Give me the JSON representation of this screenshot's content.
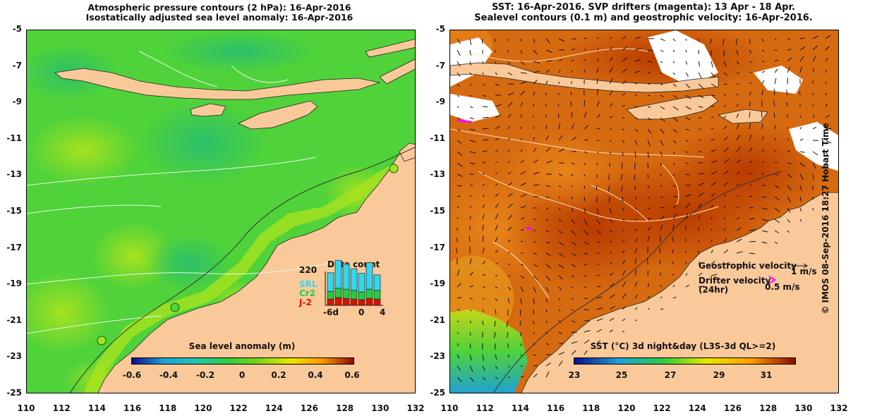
{
  "left_panel": {
    "title_line1": "Atmospheric pressure contours (2 hPa): 16-Apr-2016",
    "title_line2": "Isostatically adjusted sea level anomaly: 16-Apr-2016",
    "colorbar_title": "Sea level anomaly (m)",
    "colorbar_ticks": [
      "-0.6",
      "-0.4",
      "-0.2",
      "0",
      "0.2",
      "0.4",
      "0.6"
    ],
    "colorbar_colors": [
      "#0d0d8a",
      "#1fa0d6",
      "#23c4b0",
      "#2ecc40",
      "#7cd41a",
      "#e8e800",
      "#ff9a00",
      "#8b0c00"
    ],
    "inset": {
      "title": "Data count",
      "y_label": "220",
      "x_ticks": [
        "-6d",
        "0",
        "4"
      ],
      "legend": [
        {
          "label": "SRL",
          "color": "#33d6f0"
        },
        {
          "label": "Cr2",
          "color": "#22cc44"
        },
        {
          "label": "J-2",
          "color": "#dd1100"
        }
      ],
      "bars_SRL": [
        0.6,
        0.9,
        0.8,
        0.7,
        0.6,
        0.85,
        0.5
      ],
      "bars_Cr2": [
        0.25,
        0.3,
        0.3,
        0.28,
        0.25,
        0.3,
        0.28
      ],
      "bars_J2": [
        0.2,
        0.25,
        0.22,
        0.2,
        0.18,
        0.22,
        0.2
      ]
    }
  },
  "right_panel": {
    "title_line1": "SST: 16-Apr-2016. SVP drifters (magenta): 13 Apr - 18 Apr.",
    "title_line2": "Sealevel contours (0.1 m) and geostrophic velocity: 16-Apr-2016.",
    "colorbar_title": "SST (°C) 3d night&day (L3S-3d QL>=2)",
    "colorbar_ticks": [
      "23",
      "25",
      "27",
      "29",
      "31"
    ],
    "colorbar_colors": [
      "#0d0d8a",
      "#1fa0d6",
      "#2ecc40",
      "#e8e800",
      "#ff9a00",
      "#8b0c00"
    ],
    "legend_geo": "Geostrophic velocity",
    "legend_geo_scale": "1 m/s",
    "legend_drifter_line1": "Drifter velocity",
    "legend_drifter_line2": "(24hr)",
    "legend_drifter_scale": "0.5 m/s"
  },
  "axes": {
    "lat_ticks": [
      "-5",
      "-7",
      "-9",
      "-11",
      "-13",
      "-15",
      "-17",
      "-19",
      "-21",
      "-23",
      "-25"
    ],
    "lon_ticks": [
      "110",
      "112",
      "114",
      "116",
      "118",
      "120",
      "122",
      "124",
      "126",
      "128",
      "130",
      "132"
    ]
  },
  "credit": "© IMOS 08-Sep-2016 18:27 Hobart Time",
  "colors": {
    "land": "#f9c99a",
    "ocean_green": "#4fd23a",
    "ocean_orange": "#d66a10"
  }
}
